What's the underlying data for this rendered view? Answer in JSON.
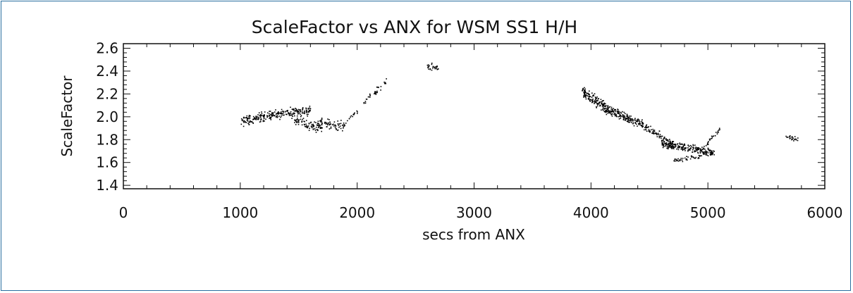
{
  "chart_data": {
    "type": "scatter",
    "title": "ScaleFactor vs ANX for WSM SS1 H/H",
    "xlabel": "secs from ANX",
    "ylabel": "ScaleFactor",
    "xlim": [
      0,
      6000
    ],
    "ylim": [
      1.37,
      2.64
    ],
    "x_ticks": [
      0,
      1000,
      2000,
      3000,
      4000,
      5000,
      6000
    ],
    "x_tick_labels": [
      "0",
      "1000",
      "2000",
      "3000",
      "4000",
      "5000",
      "6000"
    ],
    "y_ticks": [
      1.4,
      1.6,
      1.8,
      2.0,
      2.2,
      2.4,
      2.6
    ],
    "y_tick_labels": [
      "1.4",
      "1.6",
      "1.8",
      "2.0",
      "2.2",
      "2.4",
      "2.6"
    ],
    "grid": false,
    "marker_color": "#000000",
    "clusters": [
      {
        "x_range": [
          1000,
          1250
        ],
        "y_start": 1.96,
        "y_end": 2.02,
        "spread": 0.06,
        "count": 110
      },
      {
        "x_range": [
          1250,
          1600
        ],
        "y_start": 2.02,
        "y_end": 2.06,
        "spread": 0.06,
        "count": 150
      },
      {
        "x_range": [
          1450,
          1700
        ],
        "y_start": 1.98,
        "y_end": 1.9,
        "spread": 0.06,
        "count": 90
      },
      {
        "x_range": [
          1650,
          1900
        ],
        "y_start": 1.96,
        "y_end": 1.92,
        "spread": 0.06,
        "count": 70
      },
      {
        "x_range": [
          1900,
          2000
        ],
        "y_start": 1.97,
        "y_end": 2.05,
        "spread": 0.03,
        "count": 14
      },
      {
        "x_range": [
          2050,
          2250
        ],
        "y_start": 2.12,
        "y_end": 2.32,
        "spread": 0.04,
        "count": 35
      },
      {
        "x_range": [
          2590,
          2690
        ],
        "y_start": 2.44,
        "y_end": 2.44,
        "spread": 0.05,
        "count": 28
      },
      {
        "x_range": [
          3920,
          4150
        ],
        "y_start": 2.22,
        "y_end": 2.06,
        "spread": 0.07,
        "count": 170
      },
      {
        "x_range": [
          4150,
          4450
        ],
        "y_start": 2.06,
        "y_end": 1.93,
        "spread": 0.06,
        "count": 170
      },
      {
        "x_range": [
          4450,
          4700
        ],
        "y_start": 1.92,
        "y_end": 1.76,
        "spread": 0.05,
        "count": 90
      },
      {
        "x_range": [
          4600,
          5050
        ],
        "y_start": 1.77,
        "y_end": 1.69,
        "spread": 0.05,
        "count": 230
      },
      {
        "x_range": [
          4700,
          4950
        ],
        "y_start": 1.62,
        "y_end": 1.66,
        "spread": 0.03,
        "count": 40
      },
      {
        "x_range": [
          4950,
          5100
        ],
        "y_start": 1.72,
        "y_end": 1.9,
        "spread": 0.03,
        "count": 30
      },
      {
        "x_range": [
          5650,
          5770
        ],
        "y_start": 1.85,
        "y_end": 1.8,
        "spread": 0.04,
        "count": 24
      }
    ]
  }
}
